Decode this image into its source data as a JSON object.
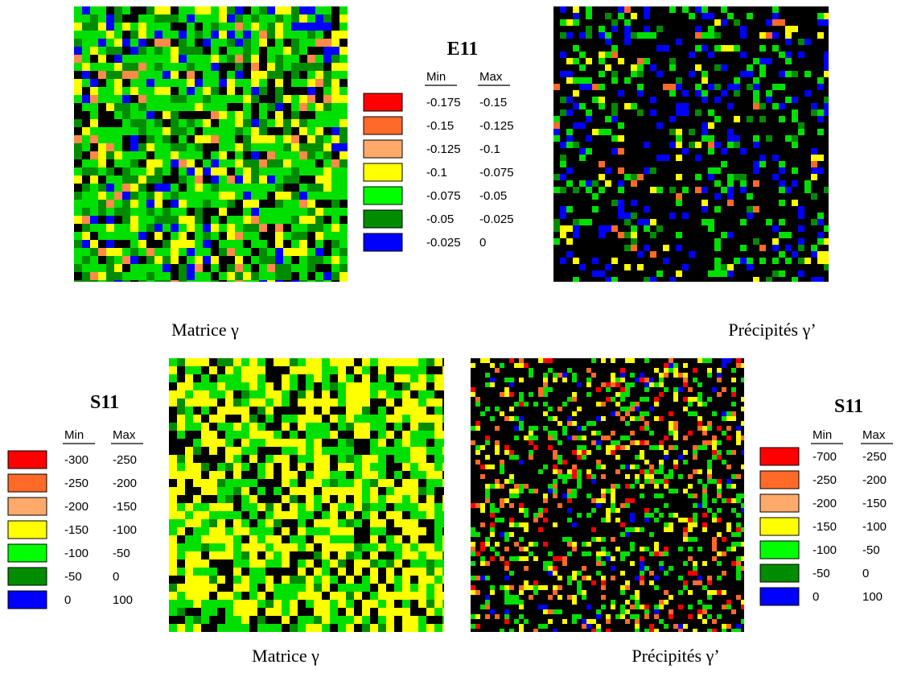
{
  "top_legend": {
    "title": "E11",
    "headers": [
      "Min",
      "Max"
    ],
    "rows": [
      [
        "-0.175",
        "-0.15"
      ],
      [
        "-0.15",
        "-0.125"
      ],
      [
        "-0.125",
        "-0.1"
      ],
      [
        "-0.1",
        "-0.075"
      ],
      [
        "-0.075",
        "-0.05"
      ],
      [
        "-0.05",
        "-0.025"
      ],
      [
        "-0.025",
        "0"
      ]
    ]
  },
  "bottom_left_legend": {
    "title": "S11",
    "headers": [
      "Min",
      "Max"
    ],
    "rows": [
      [
        "-300",
        "-250"
      ],
      [
        "-250",
        "-200"
      ],
      [
        "-200",
        "-150"
      ],
      [
        "-150",
        "-100"
      ],
      [
        "-100",
        "-50"
      ],
      [
        "-50",
        "0"
      ],
      [
        "0",
        "100"
      ]
    ]
  },
  "bottom_right_legend": {
    "title": "S11",
    "headers": [
      "Min",
      "Max"
    ],
    "rows": [
      [
        "-700",
        "-250"
      ],
      [
        "-250",
        "-200"
      ],
      [
        "-200",
        "-150"
      ],
      [
        "-150",
        "-100"
      ],
      [
        "-100",
        "-50"
      ],
      [
        "-50",
        "0"
      ],
      [
        "0",
        "100"
      ]
    ]
  },
  "captions": [
    "Matrice γ",
    "Précipités γ’",
    "Matrice γ",
    "Précipités γ’"
  ]
}
